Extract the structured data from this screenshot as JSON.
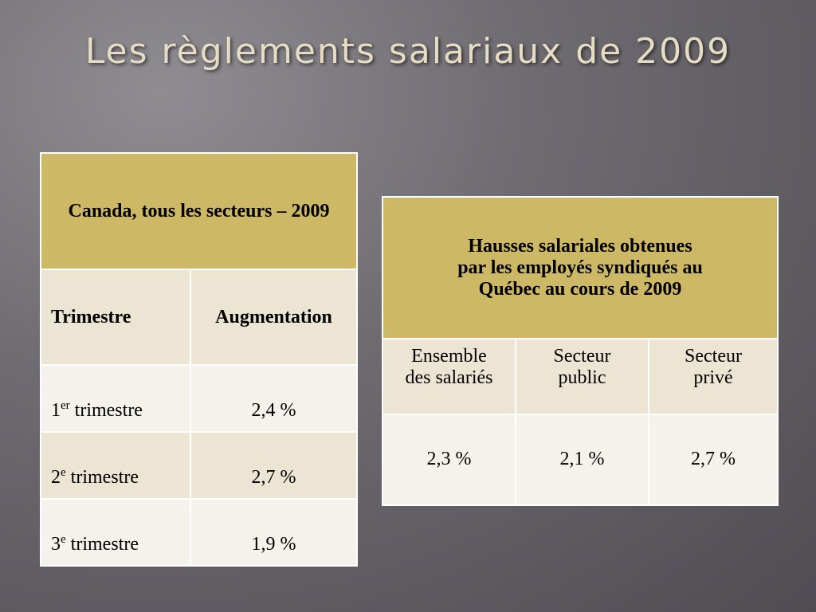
{
  "title": "Les règlements salariaux de 2009",
  "table_canada": {
    "header": "Canada, tous les secteurs – 2009",
    "columns": [
      "Trimestre",
      "Augmentation"
    ],
    "rows": [
      {
        "num": "1",
        "sup": "er",
        "label": "trimestre",
        "value": "2,4 %"
      },
      {
        "num": "2",
        "sup": "e",
        "label": "trimestre",
        "value": "2,7 %"
      },
      {
        "num": "3",
        "sup": "e",
        "label": "trimestre",
        "value": "1,9 %"
      }
    ]
  },
  "table_quebec": {
    "header_line1": "Hausses salariales obtenues",
    "header_line2": "par les employés syndiqués au",
    "header_line3": "Québec au cours de 2009",
    "columns": [
      {
        "line1": "Ensemble",
        "line2": "des salariés"
      },
      {
        "line1": "Secteur",
        "line2": "public"
      },
      {
        "line1": "Secteur",
        "line2": "privé"
      }
    ],
    "values": [
      "2,3 %",
      "2,1 %",
      "2,7 %"
    ]
  }
}
